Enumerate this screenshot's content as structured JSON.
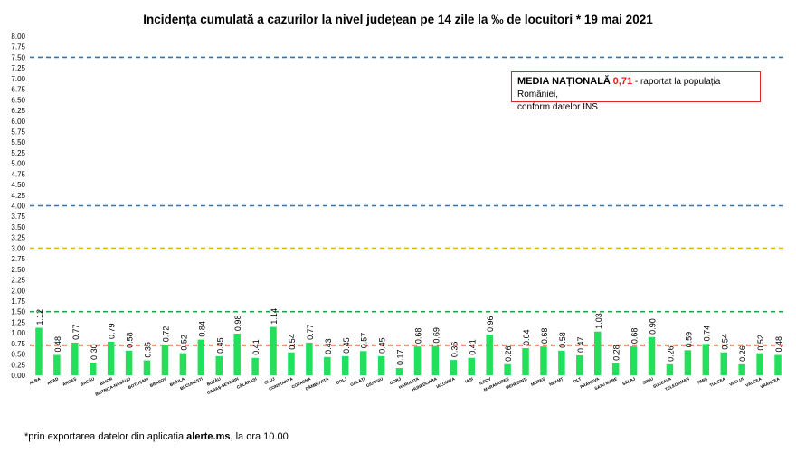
{
  "chart_data": {
    "type": "bar",
    "title": "Incidența cumulată a cazurilor la nivel județean pe 14 zile la ‰ de locuitori *  19 mai 2021",
    "xlabel": "",
    "ylabel": "",
    "ylim": [
      0,
      8
    ],
    "yticks": [
      "0.00",
      "0.25",
      "0.50",
      "0.75",
      "1.00",
      "1.25",
      "1.50",
      "1.75",
      "2.00",
      "2.25",
      "2.50",
      "2.75",
      "3.00",
      "3.25",
      "3.50",
      "3.75",
      "4.00",
      "4.25",
      "4.50",
      "4.75",
      "5.00",
      "5.25",
      "5.50",
      "5.75",
      "6.00",
      "6.25",
      "6.50",
      "6.75",
      "7.00",
      "7.25",
      "7.50",
      "7.75",
      "8.00"
    ],
    "categories": [
      "ALBA",
      "ARAD",
      "ARGEȘ",
      "BACĂU",
      "BIHOR",
      "BISTRIȚA-NĂSĂUD",
      "BOTOȘANI",
      "BRAȘOV",
      "BRĂILA",
      "BUCUREȘTI",
      "BUZĂU",
      "CARAȘ-SEVERIN",
      "CĂLĂRAȘI",
      "CLUJ",
      "CONSTANȚA",
      "COVASNA",
      "DÂMBOVIȚA",
      "DOLJ",
      "GALAȚI",
      "GIURGIU",
      "GORJ",
      "HARGHITA",
      "HUNEDOARA",
      "IALOMIȚA",
      "IAȘI",
      "ILFOV",
      "MARAMUREȘ",
      "MEHEDINȚI",
      "MUREȘ",
      "NEAMȚ",
      "OLT",
      "PRAHOVA",
      "SATU MARE",
      "SĂLAJ",
      "SIBIU",
      "SUCEAVA",
      "TELEORMAN",
      "TIMIȘ",
      "TULCEA",
      "VASLUI",
      "VÂLCEA",
      "VRANCEA"
    ],
    "values": [
      1.12,
      0.48,
      0.77,
      0.3,
      0.79,
      0.58,
      0.35,
      0.72,
      0.52,
      0.84,
      0.45,
      0.98,
      0.41,
      1.14,
      0.54,
      0.77,
      0.43,
      0.45,
      0.57,
      0.45,
      0.17,
      0.68,
      0.69,
      0.36,
      0.41,
      0.96,
      0.26,
      0.64,
      0.68,
      0.58,
      0.47,
      1.03,
      0.28,
      0.68,
      0.9,
      0.26,
      0.59,
      0.74,
      0.54,
      0.26,
      0.52,
      0.48
    ],
    "value_labels": [
      "1.12",
      "0.48",
      "0.77",
      "0.30",
      "0.79",
      "0.58",
      "0.35",
      "0.72",
      "0.52",
      "0.84",
      "0.45",
      "0.98",
      "0.41",
      "1.14",
      "0.54",
      "0.77",
      "0.43",
      "0.45",
      "0.57",
      "0.45",
      "0.17",
      "0.68",
      "0.69",
      "0.36",
      "0.41",
      "0.96",
      "0.26",
      "0.64",
      "0.68",
      "0.58",
      "0.47",
      "1.03",
      "0.28",
      "0.68",
      "0.90",
      "0.26",
      "0.59",
      "0.74",
      "0.54",
      "0.26",
      "0.52",
      "0.48"
    ],
    "reference_lines": [
      {
        "value": 7.5,
        "color": "#2e75b6"
      },
      {
        "value": 4.0,
        "color": "#2e75b6"
      },
      {
        "value": 3.0,
        "color": "#e3b512"
      },
      {
        "value": 1.5,
        "color": "#1fa24a"
      },
      {
        "value": 0.71,
        "color": "#e0231d"
      }
    ],
    "bar_color": "#22e05c",
    "grid": false,
    "legend": "none"
  },
  "note": {
    "emphasis": "MEDIA NAȚIONALĂ",
    "value": "0,71",
    "line1_rest": " - raportat la populația României,",
    "line2": "conform datelor INS"
  },
  "footnote": {
    "prefix": "*prin exportarea datelor din aplicația ",
    "app": "alerte.ms",
    "suffix": ", la ora 10.00"
  }
}
